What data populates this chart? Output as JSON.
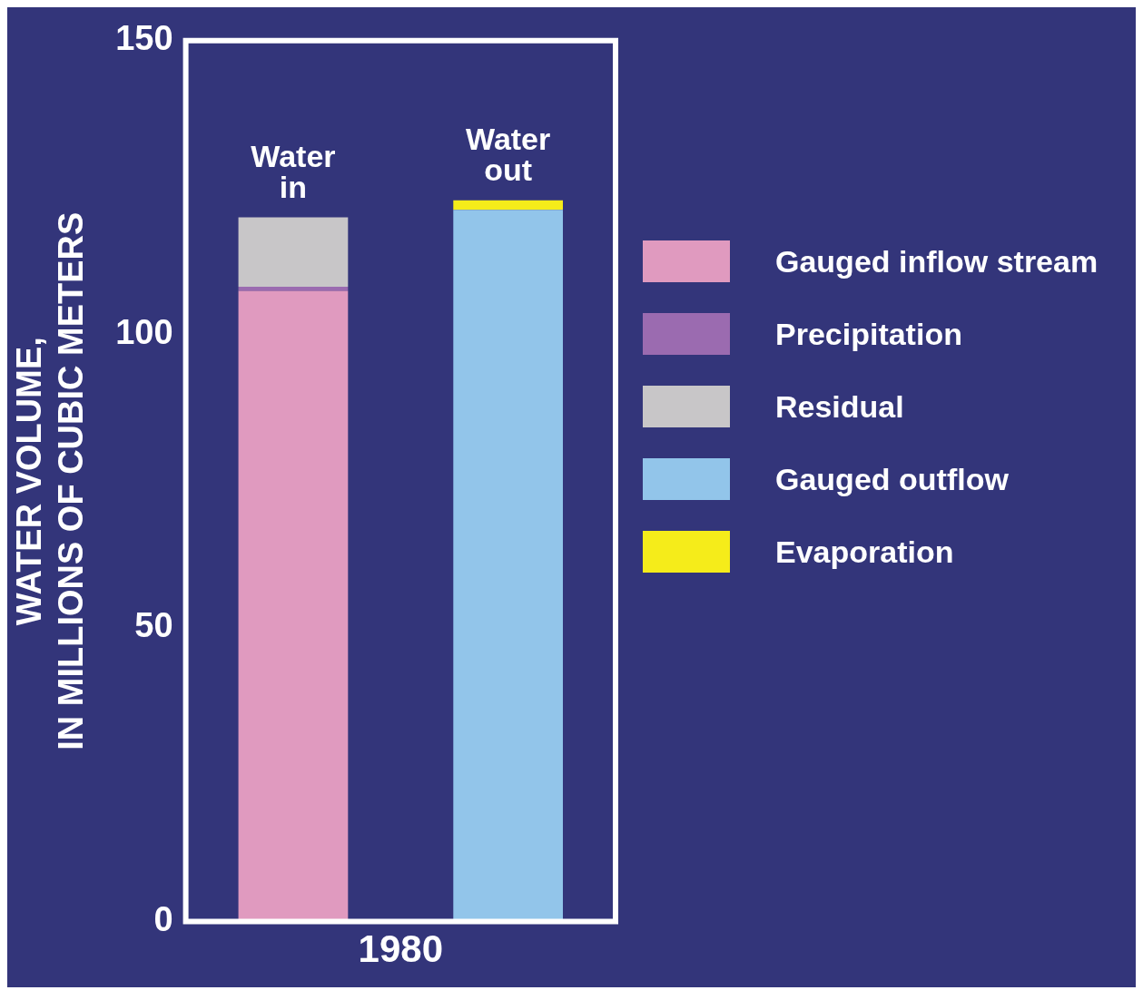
{
  "chart_data": {
    "type": "bar",
    "stacked": true,
    "xlabel": "1980",
    "ylabel": "WATER VOLUME,\nIN MILLIONS OF CUBIC METERS",
    "categories": [
      "Water in",
      "Water out"
    ],
    "series": [
      {
        "name": "Gauged inflow stream",
        "color": "#e09abf",
        "values": [
          107.4,
          null
        ]
      },
      {
        "name": "Precipitation",
        "color": "#9b6bb0",
        "values": [
          0.7,
          null
        ]
      },
      {
        "name": "Residual",
        "color": "#c8c6c8",
        "values": [
          11.8,
          null
        ]
      },
      {
        "name": "Gauged outflow",
        "color": "#92c5ea",
        "values": [
          null,
          121.2
        ]
      },
      {
        "name": "Evaporation",
        "color": "#f5ec1a",
        "values": [
          null,
          1.6
        ]
      }
    ],
    "ylim": [
      0,
      150
    ],
    "yticks": [
      0,
      50,
      100,
      150
    ],
    "grid": false,
    "legend": "right"
  }
}
